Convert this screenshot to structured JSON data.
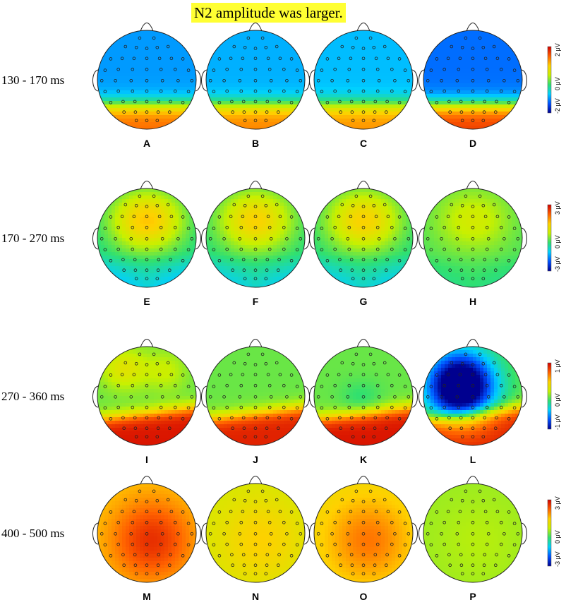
{
  "title": "N2 amplitude was larger.",
  "colors": {
    "title_background": "#ffff33",
    "colormap": [
      "#00008f",
      "#0050ff",
      "#00d0ff",
      "#30e070",
      "#c8f000",
      "#ffd000",
      "#ff6000",
      "#d00000"
    ],
    "electrode_marker": "#222222",
    "head_outline": "#222222"
  },
  "rows": [
    {
      "time_window": "130 - 170 ms",
      "scale": {
        "max_label": "2 μV",
        "zero_label": "0 μV",
        "min_label": "-2 μV",
        "max": 2,
        "min": -2
      },
      "panels": [
        {
          "letter": "A",
          "components": [
            {
              "pattern": "frontal_blue",
              "strength": 0.55
            }
          ]
        },
        {
          "letter": "B",
          "components": [
            {
              "pattern": "frontal_blue",
              "strength": 0.5
            }
          ]
        },
        {
          "letter": "C",
          "components": [
            {
              "pattern": "frontal_blue",
              "strength": 0.47
            }
          ]
        },
        {
          "letter": "D",
          "components": [
            {
              "pattern": "frontal_blue",
              "strength": 0.65
            }
          ]
        }
      ]
    },
    {
      "time_window": "170 - 270 ms",
      "scale": {
        "max_label": "3 μV",
        "zero_label": "0 μV",
        "min_label": "-3 μV",
        "max": 3,
        "min": -3
      },
      "panels": [
        {
          "letter": "E",
          "components": [
            {
              "pattern": "frontal_red",
              "strength": 0.65
            }
          ]
        },
        {
          "letter": "F",
          "components": [
            {
              "pattern": "frontal_red",
              "strength": 0.58
            }
          ]
        },
        {
          "letter": "G",
          "components": [
            {
              "pattern": "frontal_red",
              "strength": 0.58
            }
          ]
        },
        {
          "letter": "H",
          "components": [
            {
              "pattern": "frontal_red",
              "strength": 0.28
            }
          ]
        }
      ]
    },
    {
      "time_window": "270 - 360 ms",
      "scale": {
        "max_label": "1 μV",
        "zero_label": "0 μV",
        "min_label": "-1 μV",
        "max": 1,
        "min": -1
      },
      "panels": [
        {
          "letter": "I",
          "components": [
            {
              "pattern": "posterior_red",
              "strength": 0.75
            },
            {
              "pattern": "left_frontal",
              "strength": 0.3
            }
          ]
        },
        {
          "letter": "J",
          "components": [
            {
              "pattern": "posterior_red",
              "strength": 0.72
            }
          ]
        },
        {
          "letter": "K",
          "components": [
            {
              "pattern": "posterior_red",
              "strength": 0.75
            },
            {
              "pattern": "central_blue",
              "strength": 0.12
            }
          ]
        },
        {
          "letter": "L",
          "components": [
            {
              "pattern": "posterior_red",
              "strength": 0.72
            },
            {
              "pattern": "frontal_deep_blue",
              "strength": 0.85
            }
          ]
        }
      ]
    },
    {
      "time_window": "400 - 500 ms",
      "scale": {
        "max_label": "3 μV",
        "zero_label": "0 μV",
        "min_label": "-3 μV",
        "max": 3,
        "min": -3
      },
      "panels": [
        {
          "letter": "M",
          "components": [
            {
              "pattern": "broad_red",
              "strength": 0.78
            }
          ]
        },
        {
          "letter": "N",
          "components": [
            {
              "pattern": "broad_red",
              "strength": 0.38
            }
          ]
        },
        {
          "letter": "O",
          "components": [
            {
              "pattern": "broad_red",
              "strength": 0.6
            }
          ]
        },
        {
          "letter": "P",
          "components": [
            {
              "pattern": "broad_red",
              "strength": 0.1
            }
          ]
        }
      ]
    }
  ]
}
